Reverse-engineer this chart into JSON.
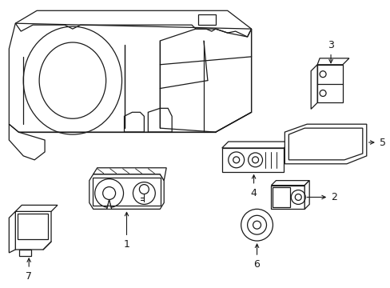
{
  "background_color": "#ffffff",
  "line_color": "#1a1a1a",
  "lw": 0.9,
  "figsize": [
    4.89,
    3.6
  ],
  "dpi": 100,
  "label_fontsize": 9
}
